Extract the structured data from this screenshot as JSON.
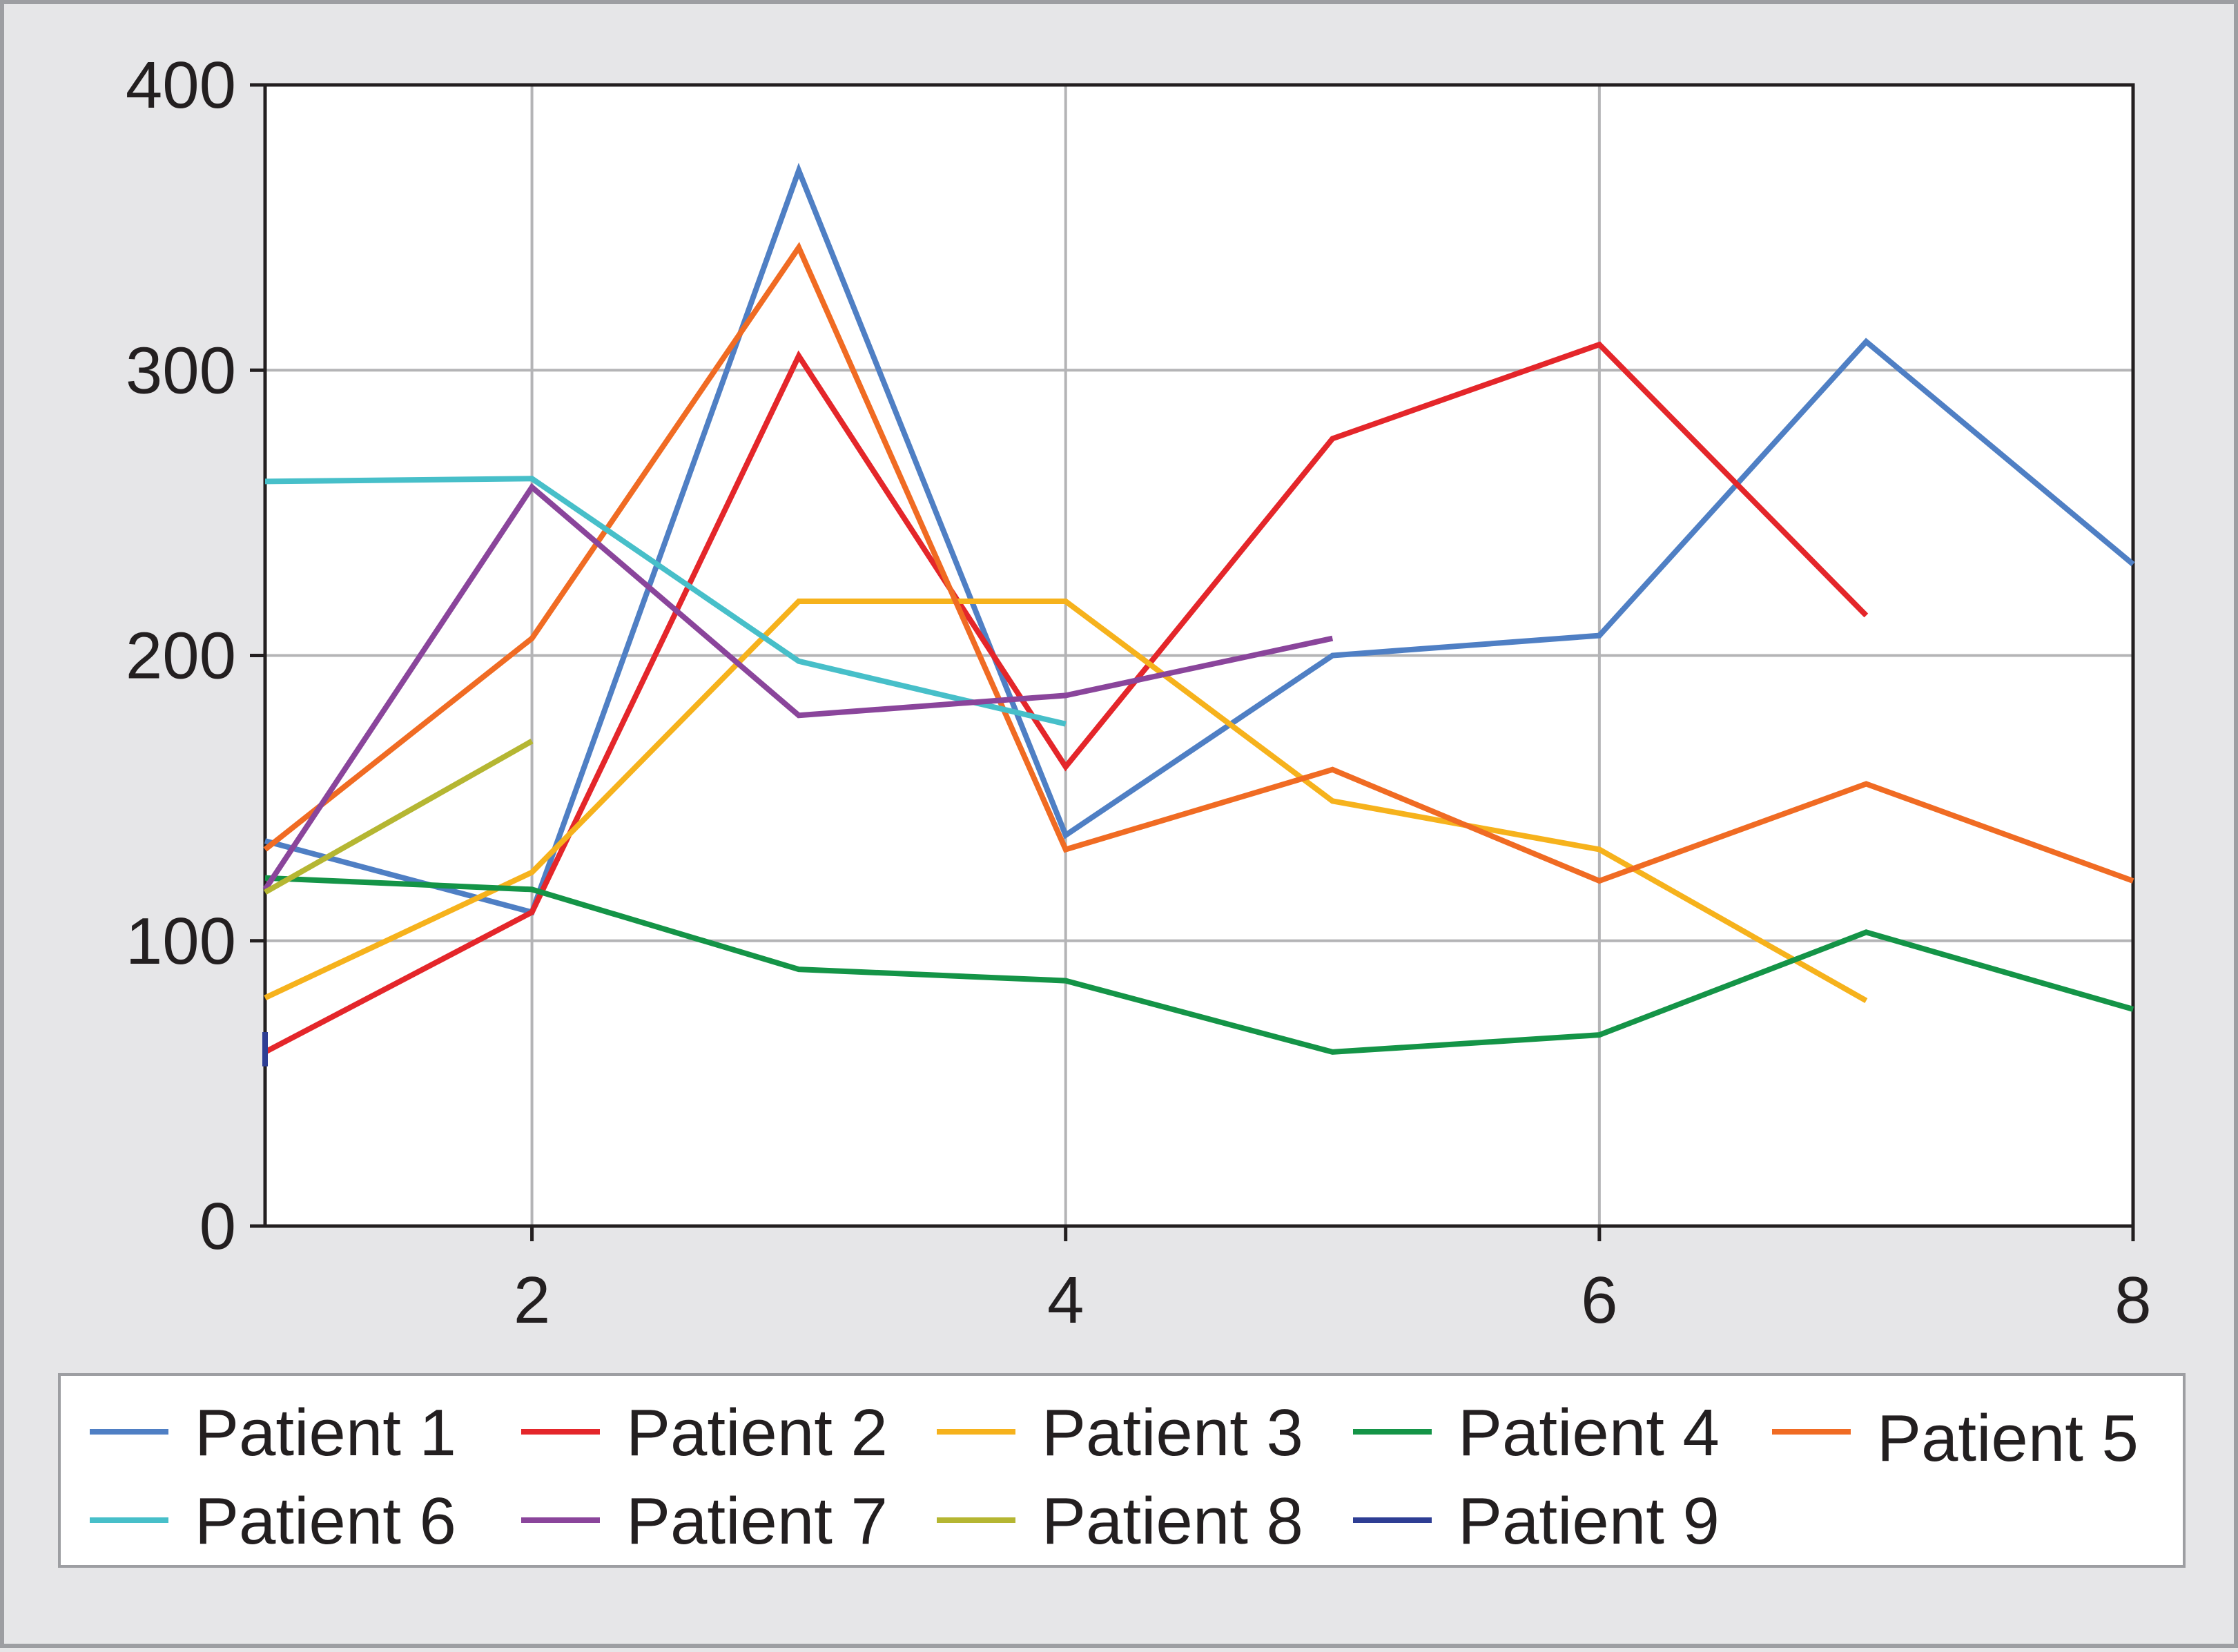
{
  "chart_data": {
    "type": "line",
    "title": "",
    "xlabel": "",
    "ylabel": "",
    "xlim": [
      1,
      8
    ],
    "ylim": [
      0,
      400
    ],
    "x_ticks": [
      2,
      4,
      6,
      8
    ],
    "y_ticks": [
      0,
      100,
      200,
      300,
      400
    ],
    "grid": true,
    "legend_position": "bottom",
    "series": [
      {
        "name": "Patient 1",
        "color": "#4f7fc4",
        "x": [
          1,
          2,
          3,
          4,
          5,
          6,
          7,
          8
        ],
        "y": [
          135,
          110,
          370,
          137,
          200,
          207,
          310,
          232
        ]
      },
      {
        "name": "Patient 2",
        "color": "#e4262a",
        "x": [
          1,
          2,
          3,
          4,
          5,
          6,
          7
        ],
        "y": [
          61,
          110,
          305,
          161,
          276,
          309,
          214
        ]
      },
      {
        "name": "Patient 3",
        "color": "#f6b21c",
        "x": [
          1,
          2,
          3,
          4,
          5,
          6,
          7
        ],
        "y": [
          80,
          124,
          219,
          219,
          149,
          132,
          79
        ]
      },
      {
        "name": "Patient 4",
        "color": "#149447",
        "x": [
          1,
          2,
          3,
          4,
          5,
          6,
          7,
          8
        ],
        "y": [
          122,
          118,
          90,
          86,
          61,
          67,
          103,
          76
        ]
      },
      {
        "name": "Patient 5",
        "color": "#f06b23",
        "x": [
          1,
          2,
          3,
          4,
          5,
          6,
          7,
          8
        ],
        "y": [
          132,
          206,
          343,
          132,
          160,
          121,
          155,
          121
        ]
      },
      {
        "name": "Patient 6",
        "color": "#47bfc9",
        "x": [
          1,
          2,
          3,
          4
        ],
        "y": [
          261,
          262,
          198,
          176
        ]
      },
      {
        "name": "Patient 7",
        "color": "#8a459b",
        "x": [
          1,
          2,
          3,
          4,
          5
        ],
        "y": [
          118,
          259,
          179,
          186,
          206
        ]
      },
      {
        "name": "Patient 8",
        "color": "#b5b632",
        "x": [
          1,
          2
        ],
        "y": [
          117,
          170
        ]
      },
      {
        "name": "Patient 9",
        "color": "#2e3e94",
        "x": [
          1,
          1
        ],
        "y": [
          56,
          68
        ]
      }
    ]
  }
}
